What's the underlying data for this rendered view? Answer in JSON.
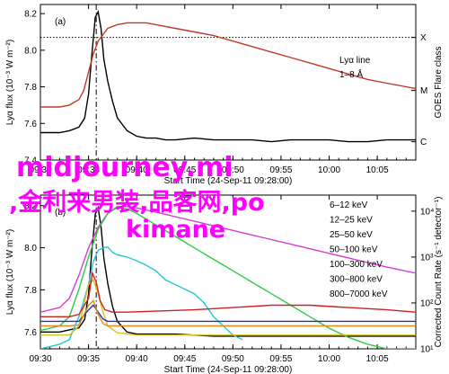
{
  "chart_data": [
    {
      "panel_label": "(a)",
      "type": "line",
      "xlabel": "Start Time (24-Sep-11 09:28:00)",
      "ylabel": "Lyα flux (10⁻³ W m⁻²)",
      "right_label": "GOES Flare class",
      "xlim": [
        30,
        69
      ],
      "x_ticks": [
        {
          "v": 30,
          "label": "09:30"
        },
        {
          "v": 35,
          "label": "09:35"
        },
        {
          "v": 40,
          "label": "09:40"
        },
        {
          "v": 45,
          "label": "09:45"
        },
        {
          "v": 50,
          "label": "09:50"
        },
        {
          "v": 55,
          "label": "09:55"
        },
        {
          "v": 60,
          "label": "10:00"
        },
        {
          "v": 65,
          "label": "10:05"
        }
      ],
      "ylim": [
        7.4,
        8.25
      ],
      "y_ticks": [
        7.4,
        7.6,
        7.8,
        8.0,
        8.2
      ],
      "y_tick_labels": [
        "7.4",
        "7.6",
        "7.8",
        "8.0",
        "8.2"
      ],
      "right_ticks": [
        {
          "y": 7.5,
          "label": "C"
        },
        {
          "y": 7.78,
          "label": "M"
        },
        {
          "y": 8.07,
          "label": "X"
        }
      ],
      "hline": 8.07,
      "vline": 35.8,
      "legend": [
        {
          "name": "Lyα line",
          "color": "#000000"
        },
        {
          "name": "1–8 Å",
          "color": "#c0392b"
        }
      ],
      "series": [
        {
          "name": "Lyα line",
          "color": "#000000",
          "x": [
            30,
            32,
            33,
            34,
            34.6,
            35,
            35.3,
            35.7,
            36,
            36.3,
            36.6,
            37,
            37.5,
            38,
            39,
            40,
            41,
            42,
            43,
            44,
            46,
            48,
            50,
            52,
            54,
            56,
            58,
            60,
            62,
            64,
            66,
            68,
            69
          ],
          "y": [
            7.55,
            7.55,
            7.56,
            7.58,
            7.63,
            7.76,
            7.95,
            8.18,
            8.21,
            8.12,
            7.95,
            7.83,
            7.72,
            7.63,
            7.56,
            7.53,
            7.52,
            7.52,
            7.51,
            7.51,
            7.52,
            7.51,
            7.51,
            7.51,
            7.5,
            7.51,
            7.51,
            7.51,
            7.5,
            7.5,
            7.51,
            7.51,
            7.51
          ]
        },
        {
          "name": "1–8 Å",
          "color": "#c0392b",
          "x": [
            30,
            32,
            33,
            34,
            34.5,
            35,
            35.5,
            36,
            37,
            38,
            39,
            40,
            41,
            42,
            44,
            46,
            48,
            50,
            52,
            54,
            56,
            58,
            60,
            62,
            64,
            66,
            69
          ],
          "y": [
            7.69,
            7.69,
            7.7,
            7.73,
            7.78,
            7.88,
            7.98,
            8.05,
            8.12,
            8.14,
            8.15,
            8.15,
            8.15,
            8.14,
            8.12,
            8.1,
            8.08,
            8.05,
            8.02,
            7.99,
            7.96,
            7.93,
            7.9,
            7.87,
            7.84,
            7.82,
            7.79
          ]
        }
      ]
    },
    {
      "panel_label": "(b)",
      "type": "line",
      "xlabel": "Start Time (24-Sep-11 09:28:00)",
      "ylabel": "Lyα flux (10⁻³ W m⁻²)",
      "right_label": "Corrected Count Rate (s⁻¹ detector⁻¹)",
      "xlim": [
        30,
        69
      ],
      "x_ticks": [
        {
          "v": 30,
          "label": "09:30"
        },
        {
          "v": 35,
          "label": "09:35"
        },
        {
          "v": 40,
          "label": "09:40"
        },
        {
          "v": 45,
          "label": "09:45"
        },
        {
          "v": 50,
          "label": "09:50"
        },
        {
          "v": 55,
          "label": "09:55"
        },
        {
          "v": 60,
          "label": "10:00"
        },
        {
          "v": 65,
          "label": "10:05"
        }
      ],
      "ylim": [
        7.52,
        8.25
      ],
      "y_ticks": [
        7.6,
        7.8,
        8.0,
        8.2
      ],
      "y_tick_labels": [
        "7.6",
        "7.8",
        "8.0",
        "8.2"
      ],
      "right_scale": "log",
      "right_ylim_log10": [
        1,
        4.35
      ],
      "right_ticks": [
        {
          "log": 1,
          "label": "10¹"
        },
        {
          "log": 2,
          "label": "10²"
        },
        {
          "log": 3,
          "label": "10³"
        },
        {
          "log": 4,
          "label": "10⁴"
        }
      ],
      "vline": 35.8,
      "legend": [
        {
          "name": "6–12 keV",
          "color": "#d63bd6"
        },
        {
          "name": "12–25 keV",
          "color": "#2ecc40"
        },
        {
          "name": "25–50 keV",
          "color": "#22c7d9"
        },
        {
          "name": "50–100 keV",
          "color": "#d9c21a"
        },
        {
          "name": "100–300 keV",
          "color": "#cc2222"
        },
        {
          "name": "300–800 keV",
          "color": "#2233bb"
        },
        {
          "name": "800–7000 keV",
          "color": "#e08a1e"
        }
      ],
      "series": [
        {
          "name": "Lyα",
          "color": "#000000",
          "x": [
            30,
            32,
            33,
            34,
            34.6,
            35,
            35.3,
            35.7,
            36,
            36.3,
            36.6,
            37,
            37.5,
            38,
            39,
            40,
            42,
            44,
            48,
            52,
            56,
            60,
            64,
            69
          ],
          "y": [
            7.6,
            7.6,
            7.61,
            7.62,
            7.66,
            7.78,
            7.96,
            8.16,
            8.19,
            8.1,
            7.95,
            7.83,
            7.72,
            7.65,
            7.6,
            7.59,
            7.59,
            7.59,
            7.58,
            7.58,
            7.58,
            7.58,
            7.58,
            7.58
          ]
        },
        {
          "name": "6–12 keV",
          "color": "#d63bd6",
          "x": [
            30,
            32,
            33,
            34,
            35,
            36,
            37,
            38,
            39,
            40,
            42,
            44,
            46,
            48,
            50,
            52,
            54,
            56,
            58,
            60,
            62,
            64,
            66,
            69
          ],
          "y": [
            1.8,
            1.9,
            2.1,
            2.6,
            3.2,
            3.65,
            3.95,
            4.1,
            4.1,
            4.07,
            3.98,
            3.88,
            3.78,
            3.68,
            3.58,
            3.48,
            3.38,
            3.28,
            3.18,
            3.08,
            2.98,
            2.88,
            2.78,
            2.65
          ]
        },
        {
          "name": "12–25 keV",
          "color": "#2ecc40",
          "x": [
            30,
            32,
            33,
            34,
            35,
            36,
            37,
            38,
            39,
            40,
            42,
            44,
            46,
            48,
            50,
            52,
            54,
            56,
            58,
            60,
            62,
            64,
            66,
            68,
            69
          ],
          "y": [
            1.4,
            1.5,
            1.7,
            2.3,
            3.0,
            3.6,
            3.95,
            4.08,
            4.05,
            3.95,
            3.7,
            3.45,
            3.2,
            2.95,
            2.7,
            2.45,
            2.2,
            1.95,
            1.7,
            1.45,
            1.25,
            1.1,
            1.0,
            1.0,
            1.0
          ]
        },
        {
          "name": "25–50 keV",
          "color": "#22c7d9",
          "x": [
            30,
            32,
            33,
            34,
            35,
            35.5,
            36,
            36.5,
            37,
            37.5,
            38,
            39,
            40,
            41,
            42,
            43,
            44,
            45,
            46,
            47,
            48,
            49,
            50,
            51
          ],
          "y": [
            1.0,
            1.1,
            1.2,
            1.7,
            2.4,
            2.9,
            3.15,
            3.2,
            3.22,
            3.1,
            3.05,
            3.0,
            2.92,
            2.82,
            2.7,
            2.5,
            2.4,
            2.3,
            2.2,
            2.0,
            1.7,
            1.5,
            1.3,
            1.2
          ]
        },
        {
          "name": "50–100 keV",
          "color": "#d9c21a",
          "x": [
            30,
            33,
            34,
            35,
            35.5,
            36,
            36.5,
            37,
            38,
            40,
            45,
            50,
            55,
            60,
            65,
            69
          ],
          "y": [
            1.3,
            1.3,
            1.5,
            2.4,
            2.5,
            2.2,
            1.8,
            1.5,
            1.35,
            1.3,
            1.3,
            1.3,
            1.3,
            1.3,
            1.3,
            1.3
          ]
        },
        {
          "name": "100–300 keV",
          "color": "#cc2222",
          "x": [
            30,
            33,
            34,
            35,
            35.4,
            35.8,
            36.2,
            36.7,
            37.5,
            39,
            42,
            46,
            50,
            54,
            58,
            62,
            66,
            69
          ],
          "y": [
            1.7,
            1.7,
            1.75,
            2.1,
            2.65,
            2.45,
            2.05,
            1.85,
            1.8,
            1.8,
            1.82,
            1.85,
            1.9,
            1.95,
            1.95,
            1.9,
            1.85,
            1.8
          ]
        },
        {
          "name": "300–800 keV",
          "color": "#2233bb",
          "x": [
            30,
            33,
            34,
            35,
            35.5,
            36,
            36.5,
            37,
            39,
            44,
            50,
            56,
            62,
            69
          ],
          "y": [
            1.6,
            1.6,
            1.6,
            1.85,
            1.95,
            1.8,
            1.65,
            1.6,
            1.6,
            1.6,
            1.6,
            1.6,
            1.6,
            1.6
          ]
        },
        {
          "name": "800–7000 keV",
          "color": "#e08a1e",
          "x": [
            30,
            33,
            34,
            35,
            35.5,
            36,
            36.5,
            37,
            39,
            44,
            50,
            56,
            62,
            69
          ],
          "y": [
            1.5,
            1.5,
            1.52,
            1.95,
            2.05,
            1.75,
            1.55,
            1.5,
            1.5,
            1.5,
            1.5,
            1.5,
            1.5,
            1.5
          ]
        }
      ]
    }
  ],
  "watermark": {
    "line1": "midjourney.mi",
    "line2": ",金利来男装,品客网,po",
    "line3": "kimane",
    "color": "#ff00ff"
  }
}
